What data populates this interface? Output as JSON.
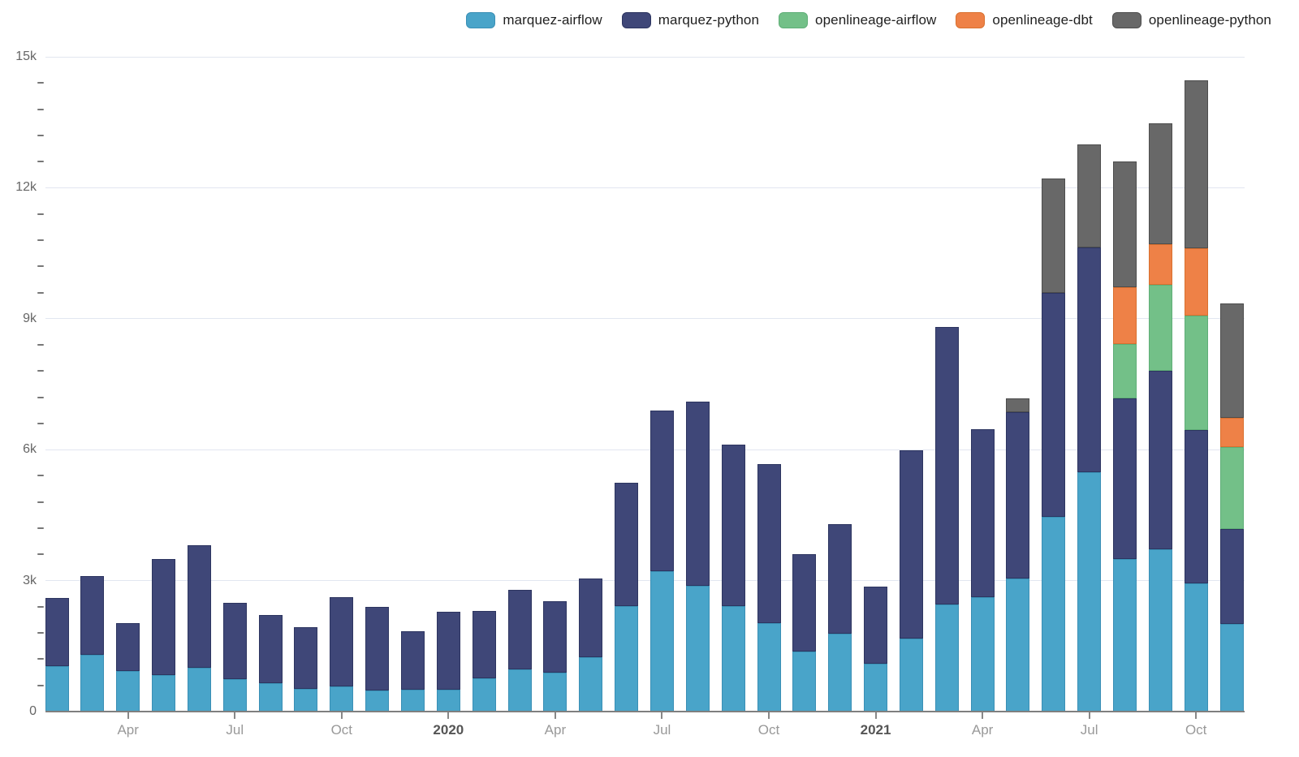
{
  "page": {
    "background": "#ffffff"
  },
  "chart_data": {
    "type": "bar",
    "stacked": true,
    "title": "",
    "xlabel": "",
    "ylabel": "",
    "grid": true,
    "legend_position": "top-right",
    "ylim": [
      0,
      15000
    ],
    "ytick_step": 3000,
    "ytick_minor_step": 600,
    "ytick_labels": [
      "0",
      "3k",
      "6k",
      "9k",
      "12k",
      "15k"
    ],
    "x": [
      "2019-02",
      "2019-03",
      "2019-04",
      "2019-05",
      "2019-06",
      "2019-07",
      "2019-08",
      "2019-09",
      "2019-10",
      "2019-11",
      "2019-12",
      "2020-01",
      "2020-02",
      "2020-03",
      "2020-04",
      "2020-05",
      "2020-06",
      "2020-07",
      "2020-08",
      "2020-09",
      "2020-10",
      "2020-11",
      "2020-12",
      "2021-01",
      "2021-02",
      "2021-03",
      "2021-04",
      "2021-05",
      "2021-06",
      "2021-07",
      "2021-08",
      "2021-09",
      "2021-10",
      "2021-11"
    ],
    "xticks": [
      {
        "index": 2,
        "label": "Apr",
        "year": false
      },
      {
        "index": 5,
        "label": "Jul",
        "year": false
      },
      {
        "index": 8,
        "label": "Oct",
        "year": false
      },
      {
        "index": 11,
        "label": "2020",
        "year": true
      },
      {
        "index": 14,
        "label": "Apr",
        "year": false
      },
      {
        "index": 17,
        "label": "Jul",
        "year": false
      },
      {
        "index": 20,
        "label": "Oct",
        "year": false
      },
      {
        "index": 23,
        "label": "2021",
        "year": true
      },
      {
        "index": 26,
        "label": "Apr",
        "year": false
      },
      {
        "index": 29,
        "label": "Jul",
        "year": false
      },
      {
        "index": 32,
        "label": "Oct",
        "year": false
      }
    ],
    "series": [
      {
        "name": "marquez-airflow",
        "color": "#49a4c9",
        "border": "#3a8fb5",
        "values": [
          1050,
          1300,
          925,
          830,
          1005,
          745,
          660,
          525,
          580,
          475,
          505,
          505,
          770,
          975,
          900,
          1240,
          2420,
          3225,
          2890,
          2420,
          2025,
          1370,
          1780,
          1090,
          1680,
          2455,
          2625,
          3055,
          4465,
          5475,
          3490,
          3710,
          2945,
          2005
        ]
      },
      {
        "name": "marquez-python",
        "color": "#3f4778",
        "border": "#2d3560",
        "values": [
          1555,
          1810,
          1100,
          2660,
          2800,
          1750,
          1550,
          1405,
          2045,
          1925,
          1335,
          1785,
          1535,
          1820,
          1630,
          1800,
          2830,
          3675,
          4215,
          3695,
          3640,
          2230,
          2515,
          1780,
          4310,
          6365,
          3845,
          3805,
          5135,
          5155,
          3690,
          4090,
          3505,
          2175
        ]
      },
      {
        "name": "openlineage-airflow",
        "color": "#73c088",
        "border": "#5fae77",
        "values": [
          0,
          0,
          0,
          0,
          0,
          0,
          0,
          0,
          0,
          0,
          0,
          0,
          0,
          0,
          0,
          0,
          0,
          0,
          0,
          0,
          0,
          0,
          0,
          0,
          0,
          0,
          0,
          0,
          0,
          0,
          1240,
          1970,
          2625,
          1875
        ]
      },
      {
        "name": "openlineage-dbt",
        "color": "#ee8147",
        "border": "#d9702f",
        "values": [
          0,
          0,
          0,
          0,
          0,
          0,
          0,
          0,
          0,
          0,
          0,
          0,
          0,
          0,
          0,
          0,
          0,
          0,
          0,
          0,
          0,
          0,
          0,
          0,
          0,
          0,
          0,
          0,
          0,
          0,
          1310,
          935,
          1540,
          675
        ]
      },
      {
        "name": "openlineage-python",
        "color": "#686868",
        "border": "#4d4d4d",
        "values": [
          0,
          0,
          0,
          0,
          0,
          0,
          0,
          0,
          0,
          0,
          0,
          0,
          0,
          0,
          0,
          0,
          0,
          0,
          0,
          0,
          0,
          0,
          0,
          0,
          0,
          0,
          0,
          320,
          2605,
          2365,
          2870,
          2775,
          3845,
          2625
        ]
      }
    ]
  }
}
